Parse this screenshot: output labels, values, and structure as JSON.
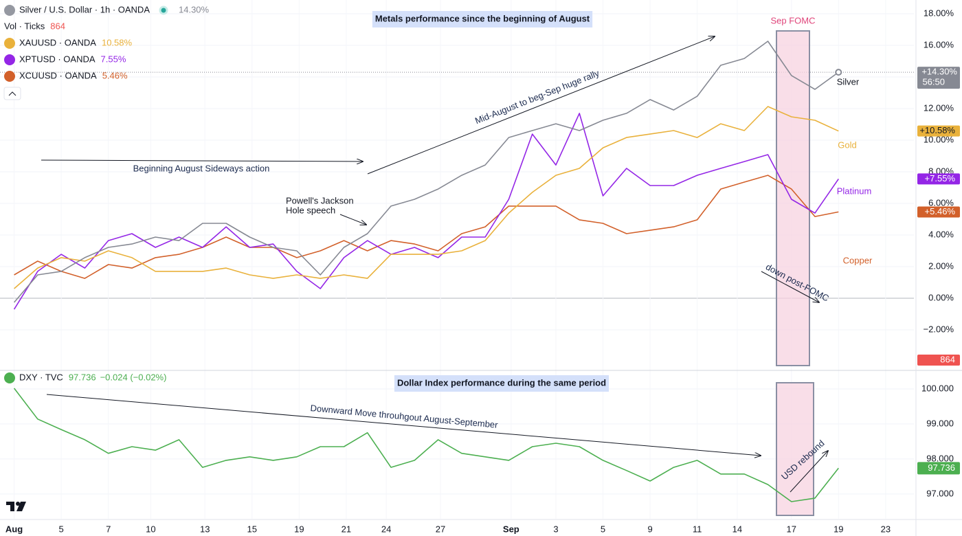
{
  "chart_data": [
    {
      "type": "line",
      "title": "Metals performance since the beginning of August",
      "x": [
        0,
        1,
        2,
        3,
        4,
        5,
        6,
        7,
        8,
        9,
        10,
        11,
        12,
        13,
        14,
        15,
        16,
        17,
        18,
        19,
        20,
        21,
        22,
        23,
        24,
        25,
        26,
        27,
        28,
        29,
        30,
        31,
        32,
        33,
        34,
        35
      ],
      "xlim": [
        -0.6,
        38.2
      ],
      "ylim": [
        -4.52,
        18.87
      ],
      "yticks": [
        {
          "value": -2,
          "label": "−2.00%"
        },
        {
          "value": 0,
          "label": "0.00%"
        },
        {
          "value": 2,
          "label": "2.00%"
        },
        {
          "value": 4,
          "label": "4.00%"
        },
        {
          "value": 6,
          "label": "6.00%"
        },
        {
          "value": 8,
          "label": "8.00%"
        },
        {
          "value": 10,
          "label": "10.00%"
        },
        {
          "value": 12,
          "label": "12.00%"
        },
        {
          "value": 14,
          "label": "14.00%"
        },
        {
          "value": 16,
          "label": "16.00%"
        },
        {
          "value": 18,
          "label": "18.00%"
        }
      ],
      "grid": true,
      "volume": {
        "name": "Vol · Ticks",
        "value": 864
      },
      "series": [
        {
          "name": "Silver / U.S. Dollar · 1h · OANDA",
          "color": "#868993",
          "legend_value": "14.30%",
          "axis_tag": "+14.30%",
          "countdown": "56:50",
          "values": [
            -0.26,
            1.48,
            1.7,
            2.57,
            3.22,
            3.43,
            3.87,
            3.65,
            4.74,
            4.74,
            3.87,
            3.22,
            3.0,
            1.48,
            3.22,
            4.09,
            5.83,
            6.26,
            6.91,
            7.78,
            8.43,
            10.17,
            10.61,
            11.04,
            10.61,
            11.26,
            11.7,
            12.57,
            11.91,
            12.78,
            14.74,
            15.17,
            16.26,
            14.09,
            13.22,
            14.3
          ]
        },
        {
          "name": "XAUUSD · OANDA",
          "color": "#e9b13b",
          "legend_value": "10.58%",
          "axis_tag": "+10.58%",
          "values": [
            0.61,
            1.91,
            2.57,
            2.35,
            3.0,
            2.57,
            1.7,
            1.7,
            1.7,
            1.91,
            1.48,
            1.26,
            1.48,
            1.26,
            1.48,
            1.26,
            2.78,
            2.78,
            2.78,
            3.0,
            3.65,
            5.39,
            6.7,
            7.78,
            8.22,
            9.52,
            10.17,
            10.39,
            10.61,
            10.17,
            11.04,
            10.61,
            12.13,
            11.48,
            11.26,
            10.58
          ]
        },
        {
          "name": "XPTUSD · OANDA",
          "color": "#9426e6",
          "legend_value": "7.55%",
          "axis_tag": "+7.55%",
          "values": [
            -0.7,
            1.7,
            2.78,
            1.91,
            3.65,
            4.09,
            3.22,
            3.87,
            3.22,
            4.52,
            3.22,
            3.43,
            1.7,
            0.61,
            2.57,
            3.65,
            2.78,
            3.22,
            2.57,
            3.87,
            3.87,
            6.26,
            10.39,
            8.43,
            11.7,
            6.48,
            8.22,
            7.13,
            7.13,
            7.78,
            8.22,
            8.65,
            9.09,
            6.26,
            5.39,
            7.55
          ]
        },
        {
          "name": "XCUUSD · OANDA",
          "color": "#d2602a",
          "legend_value": "5.46%",
          "axis_tag": "+5.46%",
          "values": [
            1.48,
            2.35,
            1.7,
            1.26,
            2.13,
            1.91,
            2.57,
            2.78,
            3.22,
            3.87,
            3.22,
            3.22,
            2.57,
            3.0,
            3.65,
            3.0,
            3.65,
            3.43,
            3.0,
            4.09,
            4.52,
            5.83,
            5.83,
            5.83,
            4.96,
            4.74,
            4.09,
            4.3,
            4.52,
            4.96,
            6.91,
            7.35,
            7.78,
            6.91,
            5.17,
            5.46
          ]
        }
      ],
      "annotations": [
        "Sep FOMC",
        "Mid-August to beg-Sep huge rally",
        "Beginning August Sideways action",
        "Powell's Jackson",
        "Hole speech",
        "down post-FOMC",
        "Silver",
        "Gold",
        "Platinum",
        "Copper"
      ]
    },
    {
      "type": "line",
      "title": "Dollar Index performance during the same period",
      "x": [
        0,
        1,
        2,
        3,
        4,
        5,
        6,
        7,
        8,
        9,
        10,
        11,
        12,
        13,
        14,
        15,
        16,
        17,
        18,
        19,
        20,
        21,
        22,
        23,
        24,
        25,
        26,
        27,
        28,
        29,
        30,
        31,
        32,
        33,
        34,
        35
      ],
      "xlim": [
        -0.6,
        38.2
      ],
      "xticks": [
        {
          "value": 0,
          "label": "Aug"
        },
        {
          "value": 2.0,
          "label": "5"
        },
        {
          "value": 4.0,
          "label": "7"
        },
        {
          "value": 5.8,
          "label": "10"
        },
        {
          "value": 8.1,
          "label": "13"
        },
        {
          "value": 10.1,
          "label": "15"
        },
        {
          "value": 12.1,
          "label": "19"
        },
        {
          "value": 14.1,
          "label": "21"
        },
        {
          "value": 15.8,
          "label": "24"
        },
        {
          "value": 18.1,
          "label": "27"
        },
        {
          "value": 21.1,
          "label": "Sep"
        },
        {
          "value": 23.0,
          "label": "3"
        },
        {
          "value": 25.0,
          "label": "5"
        },
        {
          "value": 27.0,
          "label": "9"
        },
        {
          "value": 29.0,
          "label": "11"
        },
        {
          "value": 30.7,
          "label": "14"
        },
        {
          "value": 33.0,
          "label": "17"
        },
        {
          "value": 35.0,
          "label": "19"
        },
        {
          "value": 37.0,
          "label": "23"
        }
      ],
      "ylim": [
        96.29,
        100.51
      ],
      "yticks": [
        {
          "value": 97,
          "label": "97.000"
        },
        {
          "value": 98,
          "label": "98.000"
        },
        {
          "value": 99,
          "label": "99.000"
        },
        {
          "value": 100,
          "label": "100.000"
        }
      ],
      "grid": true,
      "series": [
        {
          "name": "DXY · TVC",
          "color": "#4caf50",
          "last": 97.736,
          "change": "−0.024 (−0.02%)",
          "values": [
            100.02,
            99.14,
            98.84,
            98.55,
            98.16,
            98.35,
            98.25,
            98.55,
            97.76,
            97.96,
            98.06,
            97.96,
            98.06,
            98.35,
            98.35,
            98.75,
            97.76,
            97.96,
            98.55,
            98.16,
            98.06,
            97.96,
            98.35,
            98.45,
            98.35,
            97.96,
            97.67,
            97.37,
            97.76,
            97.96,
            97.57,
            97.57,
            97.27,
            96.78,
            96.88,
            97.736
          ]
        }
      ],
      "annotations": [
        "Downward Move throuhgout August-September",
        "USD rebound"
      ]
    }
  ]
}
